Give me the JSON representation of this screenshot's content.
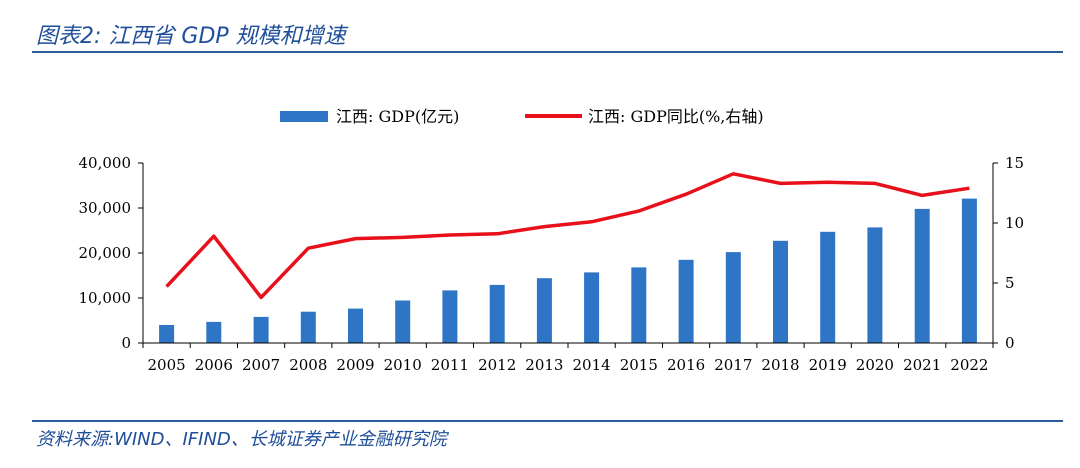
{
  "header": {
    "title": "图表2:  江西省 GDP 规模和增速"
  },
  "footer": {
    "source": "资料来源:WIND、IFIND、长城证券产业金融研究院"
  },
  "colors": {
    "bar": "#2E75C6",
    "line": "#E8101A",
    "title": "#1F4E9A",
    "rule": "#2F5C9E"
  },
  "chart_data": {
    "type": "bar+line",
    "title": "江西省 GDP 规模和增速",
    "categories": [
      "2005",
      "2006",
      "2007",
      "2008",
      "2009",
      "2010",
      "2011",
      "2012",
      "2013",
      "2014",
      "2015",
      "2016",
      "2017",
      "2018",
      "2019",
      "2020",
      "2021",
      "2022"
    ],
    "series": [
      {
        "name": "江西:GDP(亿元)",
        "type": "bar",
        "axis": "left",
        "values": [
          4000,
          4700,
          5800,
          6950,
          7650,
          9450,
          11700,
          12900,
          14400,
          15700,
          16800,
          18500,
          20200,
          22700,
          24700,
          25700,
          29800,
          32100
        ]
      },
      {
        "name": "江西:GDP同比(%,右轴)",
        "type": "line",
        "axis": "right",
        "values": [
          4.7,
          8.9,
          3.8,
          7.9,
          8.7,
          8.8,
          9.0,
          9.1,
          9.7,
          10.1,
          11.0,
          12.4,
          14.1,
          13.3,
          13.4,
          13.3,
          12.3,
          12.9
        ]
      }
    ],
    "left_axis": {
      "min": 0,
      "max": 40000,
      "ticks": [
        0,
        10000,
        20000,
        30000,
        40000
      ],
      "tick_labels": [
        "0",
        "10,000",
        "20,000",
        "30,000",
        "40,000"
      ]
    },
    "right_axis": {
      "min": 0,
      "max": 15,
      "ticks": [
        0,
        5,
        10,
        15
      ],
      "tick_labels": [
        "0",
        "5",
        "10",
        "15"
      ]
    },
    "legend": {
      "position": "top",
      "entries": [
        "江西: GDP(亿元)",
        "江西: GDP同比(%,右轴)"
      ]
    }
  }
}
